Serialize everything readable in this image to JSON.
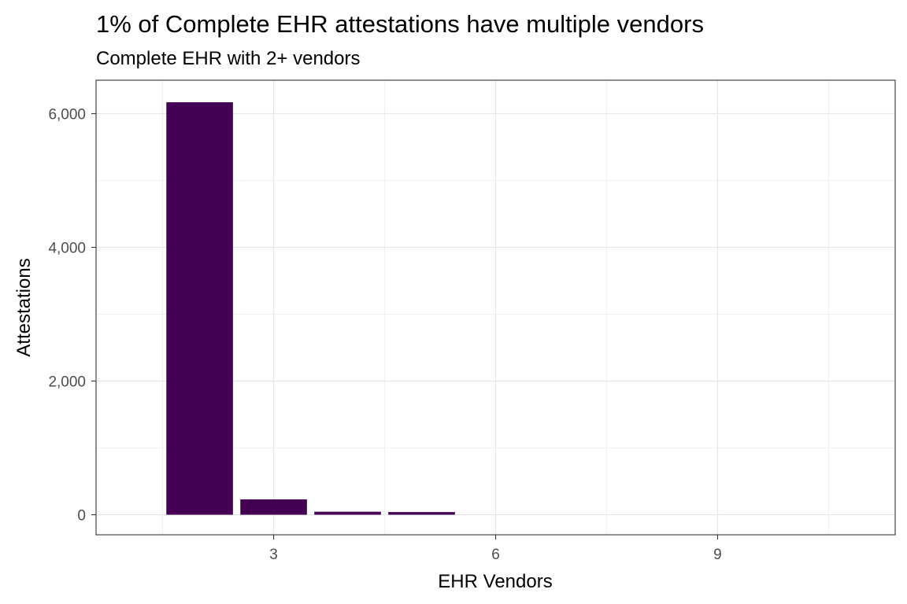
{
  "chart_data": {
    "type": "bar",
    "title": "1% of Complete EHR attestations have multiple vendors",
    "subtitle": "Complete EHR with 2+ vendors",
    "xlabel": "EHR Vendors",
    "ylabel": "Attestations",
    "x": [
      2,
      3,
      4,
      5
    ],
    "values": [
      6170,
      230,
      45,
      40
    ],
    "xlim": [
      0.6,
      11.4
    ],
    "ylim": [
      -300,
      6500
    ],
    "x_ticks": [
      3,
      6,
      9
    ],
    "x_tick_labels": [
      "3",
      "6",
      "9"
    ],
    "y_ticks": [
      0,
      2000,
      4000,
      6000
    ],
    "y_tick_labels": [
      "0",
      "2,000",
      "4,000",
      "6,000"
    ],
    "bar_color": "#440154",
    "grid": true,
    "legend": "none"
  }
}
